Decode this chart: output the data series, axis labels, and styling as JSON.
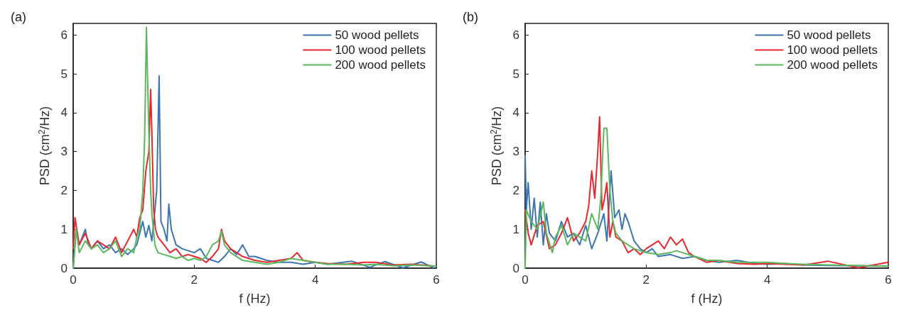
{
  "chart_data": [
    {
      "type": "line",
      "title": "(a)",
      "xlabel": "f (Hz)",
      "ylabel": "PSD (cm$^{2}$/Hz)",
      "xlim": [
        0,
        6
      ],
      "xticks": [
        0,
        2,
        4,
        6
      ],
      "ylim": [
        0,
        6.3
      ],
      "yticks": [
        0,
        1,
        2,
        3,
        4,
        5,
        6
      ],
      "legend": "top right",
      "grid": false,
      "marker": "none",
      "line_style": "solid",
      "series": [
        {
          "name": "50 wood pellets",
          "color": "#3b76b1",
          "x": [
            0,
            0.05,
            0.1,
            0.15,
            0.2,
            0.25,
            0.3,
            0.4,
            0.5,
            0.6,
            0.7,
            0.8,
            0.9,
            1.0,
            1.05,
            1.1,
            1.15,
            1.2,
            1.25,
            1.3,
            1.35,
            1.38,
            1.42,
            1.45,
            1.5,
            1.55,
            1.58,
            1.62,
            1.7,
            1.8,
            1.9,
            2.0,
            2.1,
            2.2,
            2.3,
            2.4,
            2.5,
            2.6,
            2.7,
            2.8,
            2.9,
            3.0,
            3.2,
            3.4,
            3.6,
            3.8,
            4.0,
            4.2,
            4.6,
            4.9,
            5.15,
            5.45,
            5.75,
            5.95
          ],
          "values": [
            0,
            1.0,
            0.6,
            0.8,
            1.0,
            0.6,
            0.5,
            0.7,
            0.5,
            0.6,
            0.4,
            0.5,
            0.35,
            0.5,
            0.6,
            0.9,
            1.2,
            0.8,
            1.1,
            0.7,
            1.5,
            2.0,
            4.95,
            1.2,
            1.0,
            0.7,
            1.65,
            1.0,
            0.6,
            0.5,
            0.45,
            0.4,
            0.5,
            0.25,
            0.2,
            0.15,
            0.3,
            0.5,
            0.35,
            0.6,
            0.3,
            0.3,
            0.2,
            0.15,
            0.15,
            0.1,
            0.15,
            0.1,
            0.18,
            0.02,
            0.17,
            0.01,
            0.16,
            0.01
          ]
        },
        {
          "name": "100 wood pellets",
          "color": "#e8282e",
          "x": [
            0,
            0.03,
            0.1,
            0.2,
            0.3,
            0.4,
            0.5,
            0.6,
            0.7,
            0.8,
            0.9,
            1.0,
            1.05,
            1.1,
            1.15,
            1.2,
            1.25,
            1.28,
            1.3,
            1.33,
            1.36,
            1.4,
            1.5,
            1.6,
            1.7,
            1.8,
            1.9,
            2.0,
            2.1,
            2.2,
            2.3,
            2.4,
            2.45,
            2.5,
            2.6,
            2.7,
            2.8,
            3.0,
            3.2,
            3.4,
            3.6,
            3.7,
            3.8,
            4.0,
            4.2,
            4.5,
            4.8,
            5.0,
            5.3,
            5.6,
            6.0
          ],
          "values": [
            0.5,
            1.3,
            0.6,
            0.9,
            0.5,
            0.7,
            0.6,
            0.5,
            0.8,
            0.4,
            0.7,
            1.0,
            0.8,
            1.3,
            1.5,
            2.5,
            3.0,
            4.6,
            3.5,
            1.5,
            1.0,
            0.8,
            0.6,
            0.4,
            0.5,
            0.3,
            0.35,
            0.3,
            0.25,
            0.15,
            0.3,
            0.5,
            1.0,
            0.7,
            0.5,
            0.4,
            0.3,
            0.2,
            0.15,
            0.2,
            0.25,
            0.4,
            0.2,
            0.15,
            0.12,
            0.1,
            0.15,
            0.15,
            0.08,
            0.1,
            0.05
          ]
        },
        {
          "name": "200 wood pellets",
          "color": "#5cb85c",
          "x": [
            0,
            0.05,
            0.1,
            0.2,
            0.3,
            0.4,
            0.5,
            0.6,
            0.7,
            0.8,
            0.9,
            1.0,
            1.05,
            1.1,
            1.15,
            1.18,
            1.21,
            1.25,
            1.28,
            1.3,
            1.35,
            1.4,
            1.5,
            1.6,
            1.7,
            1.8,
            1.9,
            2.0,
            2.1,
            2.2,
            2.3,
            2.4,
            2.45,
            2.5,
            2.6,
            2.7,
            2.8,
            3.0,
            3.2,
            3.4,
            3.6,
            3.8,
            4.0,
            4.2,
            4.5,
            4.8,
            5.0,
            5.3,
            5.6,
            6.0
          ],
          "values": [
            0,
            1.0,
            0.4,
            0.7,
            0.5,
            0.6,
            0.4,
            0.5,
            0.7,
            0.3,
            0.5,
            0.4,
            0.8,
            1.0,
            2.0,
            3.3,
            6.2,
            3.5,
            2.0,
            1.4,
            0.6,
            0.4,
            0.35,
            0.3,
            0.25,
            0.3,
            0.2,
            0.25,
            0.2,
            0.3,
            0.6,
            0.7,
            0.95,
            0.6,
            0.4,
            0.3,
            0.2,
            0.15,
            0.1,
            0.15,
            0.25,
            0.2,
            0.15,
            0.1,
            0.1,
            0.08,
            0.1,
            0.06,
            0.08,
            0.05
          ]
        }
      ]
    },
    {
      "type": "line",
      "title": "(b)",
      "xlabel": "f (Hz)",
      "ylabel": "PSD (cm$^{2}$/Hz)",
      "xlim": [
        0,
        6
      ],
      "xticks": [
        0,
        2,
        4,
        6
      ],
      "ylim": [
        0,
        6.3
      ],
      "yticks": [
        0,
        1,
        2,
        3,
        4,
        5,
        6
      ],
      "legend": "top right",
      "grid": false,
      "marker": "none",
      "line_style": "solid",
      "series": [
        {
          "name": "50 wood pellets",
          "color": "#3b76b1",
          "x": [
            0,
            0.02,
            0.05,
            0.1,
            0.15,
            0.2,
            0.25,
            0.3,
            0.35,
            0.4,
            0.5,
            0.6,
            0.7,
            0.8,
            0.9,
            1.0,
            1.1,
            1.2,
            1.3,
            1.35,
            1.42,
            1.48,
            1.55,
            1.6,
            1.65,
            1.7,
            1.8,
            1.9,
            2.0,
            2.1,
            2.2,
            2.4,
            2.6,
            2.8,
            3.0,
            3.2,
            3.5,
            3.8,
            4.0,
            4.3,
            4.6,
            5.0,
            5.5,
            6.0
          ],
          "values": [
            2.9,
            1.5,
            2.2,
            1.0,
            1.8,
            0.8,
            1.7,
            0.6,
            1.4,
            0.9,
            0.7,
            1.2,
            0.8,
            0.9,
            0.6,
            1.1,
            0.5,
            0.9,
            1.4,
            0.7,
            2.5,
            1.3,
            1.5,
            1.0,
            1.4,
            1.2,
            0.7,
            0.5,
            0.4,
            0.5,
            0.3,
            0.35,
            0.25,
            0.3,
            0.2,
            0.15,
            0.2,
            0.12,
            0.1,
            0.12,
            0.08,
            0.07,
            0.06,
            0.05
          ]
        },
        {
          "name": "100 wood pellets",
          "color": "#e8282e",
          "x": [
            0,
            0.05,
            0.1,
            0.2,
            0.3,
            0.4,
            0.5,
            0.6,
            0.7,
            0.8,
            0.9,
            1.0,
            1.05,
            1.1,
            1.15,
            1.2,
            1.23,
            1.27,
            1.3,
            1.35,
            1.4,
            1.45,
            1.5,
            1.6,
            1.7,
            1.8,
            1.9,
            2.0,
            2.1,
            2.2,
            2.3,
            2.4,
            2.5,
            2.6,
            2.7,
            2.8,
            3.0,
            3.2,
            3.5,
            3.8,
            4.0,
            4.3,
            4.6,
            5.0,
            5.5,
            6.0
          ],
          "values": [
            1.5,
            0.9,
            0.6,
            1.1,
            1.2,
            0.5,
            0.6,
            0.9,
            1.3,
            0.7,
            0.9,
            1.2,
            1.6,
            2.5,
            1.8,
            3.0,
            3.9,
            1.5,
            1.7,
            2.2,
            0.8,
            1.2,
            0.8,
            0.7,
            0.4,
            0.5,
            0.35,
            0.5,
            0.6,
            0.7,
            0.5,
            0.8,
            0.6,
            0.75,
            0.4,
            0.3,
            0.15,
            0.2,
            0.12,
            0.1,
            0.12,
            0.1,
            0.08,
            0.18,
            0.01,
            0.15
          ]
        },
        {
          "name": "200 wood pellets",
          "color": "#5cb85c",
          "x": [
            0,
            0.02,
            0.1,
            0.2,
            0.3,
            0.35,
            0.45,
            0.5,
            0.6,
            0.7,
            0.8,
            0.9,
            1.0,
            1.1,
            1.2,
            1.25,
            1.3,
            1.35,
            1.4,
            1.45,
            1.5,
            1.6,
            1.7,
            1.8,
            1.9,
            2.0,
            2.2,
            2.4,
            2.5,
            2.6,
            2.8,
            3.0,
            3.2,
            3.5,
            3.8,
            4.0,
            4.3,
            4.6,
            5.0,
            5.5,
            6.0
          ],
          "values": [
            0,
            1.5,
            1.2,
            1.0,
            1.7,
            0.9,
            0.4,
            0.8,
            1.1,
            0.6,
            0.9,
            0.8,
            0.7,
            1.4,
            1.0,
            1.8,
            3.6,
            3.6,
            2.0,
            1.2,
            0.9,
            0.7,
            0.6,
            0.5,
            0.45,
            0.4,
            0.35,
            0.4,
            0.45,
            0.4,
            0.3,
            0.2,
            0.2,
            0.15,
            0.15,
            0.15,
            0.12,
            0.1,
            0.08,
            0.07,
            0.05
          ]
        }
      ]
    }
  ]
}
